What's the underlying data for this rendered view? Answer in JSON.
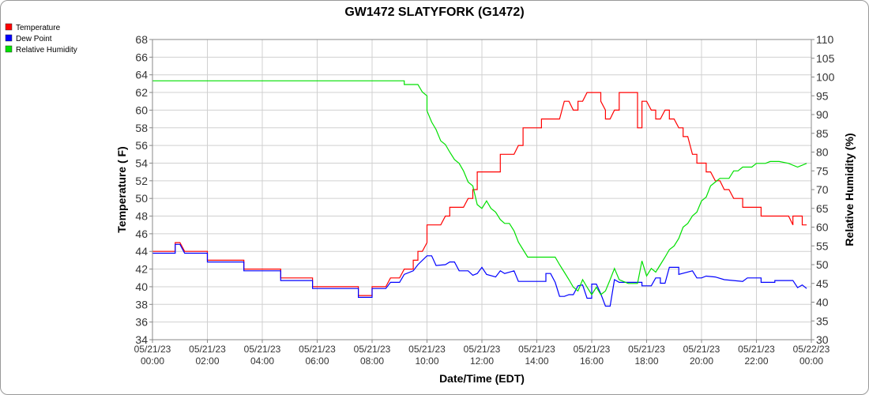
{
  "chart_data": {
    "type": "line",
    "title": "GW1472 SLATYFORK (G1472)",
    "xlabel": "Date/Time (EDT)",
    "ylabel_left": "Temperature ( F)",
    "ylabel_right": "Relative Humidity (%)",
    "ylim_left": [
      34,
      68
    ],
    "ylim_right": [
      30,
      110
    ],
    "xlim_hours": [
      0,
      24
    ],
    "yticks_left": [
      34,
      36,
      38,
      40,
      42,
      44,
      46,
      48,
      50,
      52,
      54,
      56,
      58,
      60,
      62,
      64,
      66,
      68
    ],
    "yticks_right": [
      30,
      35,
      40,
      45,
      50,
      55,
      60,
      65,
      70,
      75,
      80,
      85,
      90,
      95,
      100,
      105,
      110
    ],
    "xticks": [
      {
        "date": "05/21/23",
        "time": "00:00"
      },
      {
        "date": "05/21/23",
        "time": "02:00"
      },
      {
        "date": "05/21/23",
        "time": "04:00"
      },
      {
        "date": "05/21/23",
        "time": "06:00"
      },
      {
        "date": "05/21/23",
        "time": "08:00"
      },
      {
        "date": "05/21/23",
        "time": "10:00"
      },
      {
        "date": "05/21/23",
        "time": "12:00"
      },
      {
        "date": "05/21/23",
        "time": "14:00"
      },
      {
        "date": "05/21/23",
        "time": "16:00"
      },
      {
        "date": "05/21/23",
        "time": "18:00"
      },
      {
        "date": "05/21/23",
        "time": "20:00"
      },
      {
        "date": "05/21/23",
        "time": "22:00"
      },
      {
        "date": "05/22/23",
        "time": "00:00"
      }
    ],
    "grid": true,
    "legend_position": "top-left",
    "series": [
      {
        "name": "Temperature",
        "axis": "left",
        "color": "#ff0000",
        "points": [
          [
            0,
            44
          ],
          [
            0.83,
            44
          ],
          [
            0.83,
            45
          ],
          [
            1.0,
            45
          ],
          [
            1.17,
            44
          ],
          [
            2.0,
            44
          ],
          [
            2.0,
            43
          ],
          [
            3.33,
            43
          ],
          [
            3.33,
            42
          ],
          [
            4.67,
            42
          ],
          [
            4.67,
            41
          ],
          [
            5.83,
            41
          ],
          [
            5.83,
            40
          ],
          [
            7.5,
            40
          ],
          [
            7.5,
            39
          ],
          [
            8.0,
            39
          ],
          [
            8.0,
            40
          ],
          [
            8.5,
            40
          ],
          [
            8.67,
            41
          ],
          [
            9.0,
            41
          ],
          [
            9.17,
            42
          ],
          [
            9.5,
            42
          ],
          [
            9.5,
            43
          ],
          [
            9.67,
            43
          ],
          [
            9.67,
            44
          ],
          [
            9.83,
            44
          ],
          [
            10.0,
            45
          ],
          [
            10.0,
            47
          ],
          [
            10.5,
            47
          ],
          [
            10.67,
            48
          ],
          [
            10.83,
            48
          ],
          [
            10.83,
            49
          ],
          [
            11.33,
            49
          ],
          [
            11.5,
            50
          ],
          [
            11.67,
            50
          ],
          [
            11.67,
            51
          ],
          [
            11.83,
            51
          ],
          [
            11.83,
            53
          ],
          [
            12.67,
            53
          ],
          [
            12.67,
            55
          ],
          [
            13.17,
            55
          ],
          [
            13.33,
            56
          ],
          [
            13.5,
            56
          ],
          [
            13.5,
            58
          ],
          [
            14.17,
            58
          ],
          [
            14.17,
            59
          ],
          [
            14.83,
            59
          ],
          [
            15.0,
            61
          ],
          [
            15.17,
            61
          ],
          [
            15.33,
            60
          ],
          [
            15.5,
            60
          ],
          [
            15.5,
            61
          ],
          [
            15.67,
            61
          ],
          [
            15.83,
            62
          ],
          [
            16.33,
            62
          ],
          [
            16.33,
            61
          ],
          [
            16.5,
            60
          ],
          [
            16.5,
            59
          ],
          [
            16.67,
            59
          ],
          [
            16.83,
            60
          ],
          [
            17.0,
            60
          ],
          [
            17.0,
            62
          ],
          [
            17.67,
            62
          ],
          [
            17.67,
            58
          ],
          [
            17.83,
            58
          ],
          [
            17.83,
            61
          ],
          [
            18.0,
            61
          ],
          [
            18.17,
            60
          ],
          [
            18.33,
            60
          ],
          [
            18.33,
            59
          ],
          [
            18.5,
            59
          ],
          [
            18.67,
            60
          ],
          [
            18.83,
            60
          ],
          [
            18.83,
            59
          ],
          [
            19.0,
            59
          ],
          [
            19.17,
            58
          ],
          [
            19.33,
            58
          ],
          [
            19.33,
            57
          ],
          [
            19.5,
            57
          ],
          [
            19.67,
            55
          ],
          [
            19.83,
            55
          ],
          [
            19.83,
            54
          ],
          [
            20.17,
            54
          ],
          [
            20.17,
            53
          ],
          [
            20.33,
            53
          ],
          [
            20.5,
            52
          ],
          [
            20.67,
            52
          ],
          [
            20.83,
            51
          ],
          [
            21.0,
            51
          ],
          [
            21.17,
            50
          ],
          [
            21.5,
            50
          ],
          [
            21.5,
            49
          ],
          [
            22.17,
            49
          ],
          [
            22.17,
            48
          ],
          [
            23.17,
            48
          ],
          [
            23.33,
            47
          ],
          [
            23.33,
            48
          ],
          [
            23.67,
            48
          ],
          [
            23.67,
            47
          ],
          [
            23.83,
            47
          ]
        ]
      },
      {
        "name": "Dew Point",
        "axis": "left",
        "color": "#0000ff",
        "points": [
          [
            0,
            43.8
          ],
          [
            0.83,
            43.8
          ],
          [
            0.83,
            44.8
          ],
          [
            1.0,
            44.8
          ],
          [
            1.17,
            43.8
          ],
          [
            2.0,
            43.8
          ],
          [
            2.0,
            42.8
          ],
          [
            3.33,
            42.8
          ],
          [
            3.33,
            41.8
          ],
          [
            4.67,
            41.8
          ],
          [
            4.67,
            40.7
          ],
          [
            5.83,
            40.7
          ],
          [
            5.83,
            39.8
          ],
          [
            7.5,
            39.8
          ],
          [
            7.5,
            38.8
          ],
          [
            8.0,
            38.8
          ],
          [
            8.0,
            39.8
          ],
          [
            8.5,
            39.8
          ],
          [
            8.67,
            40.5
          ],
          [
            9.0,
            40.5
          ],
          [
            9.17,
            41.4
          ],
          [
            9.5,
            41.8
          ],
          [
            9.67,
            42.5
          ],
          [
            10.0,
            43.5
          ],
          [
            10.17,
            43.5
          ],
          [
            10.33,
            42.4
          ],
          [
            10.67,
            42.5
          ],
          [
            10.83,
            42.8
          ],
          [
            11.0,
            42.8
          ],
          [
            11.17,
            41.8
          ],
          [
            11.5,
            41.8
          ],
          [
            11.67,
            41.3
          ],
          [
            11.83,
            41.5
          ],
          [
            12.0,
            42.2
          ],
          [
            12.17,
            41.4
          ],
          [
            12.5,
            41.1
          ],
          [
            12.67,
            41.8
          ],
          [
            12.83,
            41.5
          ],
          [
            13.17,
            41.8
          ],
          [
            13.33,
            40.6
          ],
          [
            14.33,
            40.6
          ],
          [
            14.33,
            41.5
          ],
          [
            14.5,
            41.5
          ],
          [
            14.67,
            40.5
          ],
          [
            14.83,
            38.9
          ],
          [
            15.0,
            38.9
          ],
          [
            15.17,
            39.1
          ],
          [
            15.33,
            39.1
          ],
          [
            15.5,
            40.1
          ],
          [
            15.67,
            40.2
          ],
          [
            15.83,
            38.7
          ],
          [
            16.0,
            38.7
          ],
          [
            16.0,
            40.3
          ],
          [
            16.17,
            40.3
          ],
          [
            16.33,
            39.2
          ],
          [
            16.5,
            37.8
          ],
          [
            16.67,
            37.8
          ],
          [
            16.83,
            40.8
          ],
          [
            17.0,
            40.5
          ],
          [
            17.83,
            40.5
          ],
          [
            17.83,
            40.1
          ],
          [
            18.17,
            40.1
          ],
          [
            18.33,
            41.0
          ],
          [
            18.5,
            41.0
          ],
          [
            18.5,
            40.4
          ],
          [
            18.67,
            40.4
          ],
          [
            18.83,
            42.2
          ],
          [
            19.17,
            42.2
          ],
          [
            19.17,
            41.4
          ],
          [
            19.67,
            41.8
          ],
          [
            19.83,
            41.0
          ],
          [
            20.0,
            41.0
          ],
          [
            20.17,
            41.2
          ],
          [
            20.5,
            41.1
          ],
          [
            20.83,
            40.8
          ],
          [
            21.5,
            40.6
          ],
          [
            21.67,
            41.0
          ],
          [
            22.17,
            41.0
          ],
          [
            22.17,
            40.5
          ],
          [
            22.67,
            40.5
          ],
          [
            22.67,
            40.7
          ],
          [
            23.33,
            40.7
          ],
          [
            23.5,
            39.9
          ],
          [
            23.67,
            40.2
          ],
          [
            23.83,
            39.8
          ]
        ]
      },
      {
        "name": "Relative Humidity",
        "axis": "right",
        "color": "#00e000",
        "points": [
          [
            0,
            99
          ],
          [
            9.17,
            99
          ],
          [
            9.17,
            98
          ],
          [
            9.67,
            98
          ],
          [
            9.83,
            96
          ],
          [
            10.0,
            95
          ],
          [
            10.0,
            91
          ],
          [
            10.17,
            88
          ],
          [
            10.33,
            86
          ],
          [
            10.5,
            83
          ],
          [
            10.67,
            82
          ],
          [
            10.83,
            80
          ],
          [
            11.0,
            78
          ],
          [
            11.17,
            77
          ],
          [
            11.33,
            75
          ],
          [
            11.5,
            72
          ],
          [
            11.67,
            71
          ],
          [
            11.83,
            66
          ],
          [
            12.0,
            65
          ],
          [
            12.17,
            67
          ],
          [
            12.33,
            65
          ],
          [
            12.5,
            64
          ],
          [
            12.67,
            62
          ],
          [
            12.83,
            61
          ],
          [
            13.0,
            61
          ],
          [
            13.17,
            59
          ],
          [
            13.33,
            56
          ],
          [
            13.67,
            52
          ],
          [
            14.17,
            52
          ],
          [
            14.67,
            52
          ],
          [
            14.83,
            50
          ],
          [
            15.0,
            48
          ],
          [
            15.17,
            46
          ],
          [
            15.33,
            44
          ],
          [
            15.5,
            43
          ],
          [
            15.67,
            46
          ],
          [
            15.83,
            44
          ],
          [
            16.0,
            42
          ],
          [
            16.17,
            44
          ],
          [
            16.33,
            42
          ],
          [
            16.5,
            43
          ],
          [
            16.67,
            46
          ],
          [
            16.83,
            49
          ],
          [
            17.0,
            46
          ],
          [
            17.33,
            45
          ],
          [
            17.67,
            45
          ],
          [
            17.83,
            51
          ],
          [
            18.0,
            47
          ],
          [
            18.17,
            49
          ],
          [
            18.33,
            48
          ],
          [
            18.5,
            50
          ],
          [
            18.67,
            52
          ],
          [
            18.83,
            54
          ],
          [
            19.0,
            55
          ],
          [
            19.17,
            57
          ],
          [
            19.33,
            60
          ],
          [
            19.5,
            61
          ],
          [
            19.67,
            63
          ],
          [
            19.83,
            64
          ],
          [
            20.0,
            67
          ],
          [
            20.17,
            68
          ],
          [
            20.33,
            71
          ],
          [
            20.5,
            72
          ],
          [
            20.67,
            73
          ],
          [
            21.0,
            73
          ],
          [
            21.17,
            75
          ],
          [
            21.33,
            75
          ],
          [
            21.5,
            76
          ],
          [
            21.83,
            76
          ],
          [
            22.0,
            77
          ],
          [
            22.33,
            77
          ],
          [
            22.5,
            77.5
          ],
          [
            22.83,
            77.5
          ],
          [
            23.17,
            77
          ],
          [
            23.5,
            76
          ],
          [
            23.67,
            76.5
          ],
          [
            23.83,
            77
          ]
        ]
      }
    ]
  }
}
